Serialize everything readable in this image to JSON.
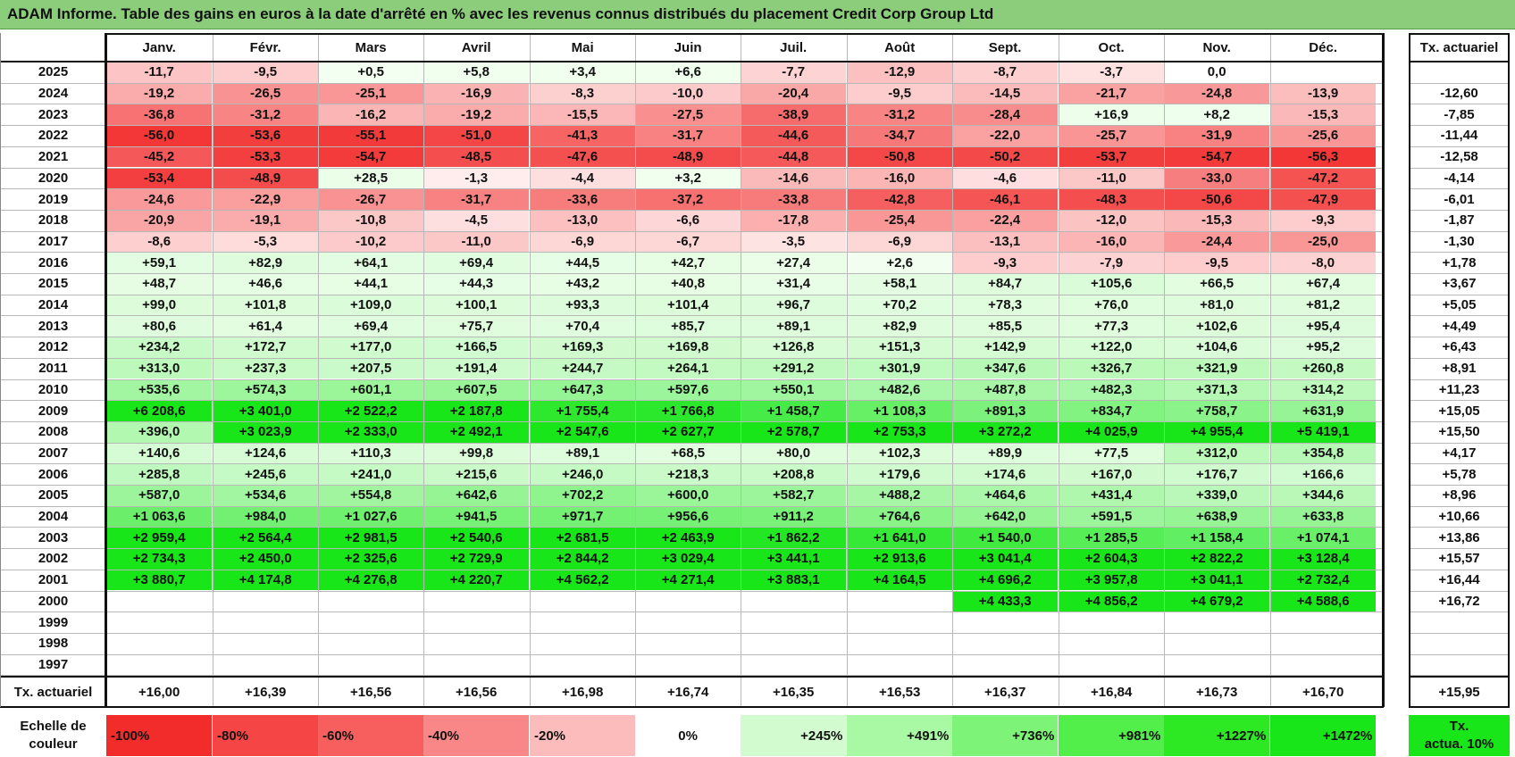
{
  "title": "ADAM Informe. Table des gains en euros à la date d'arrêté en % avec les revenus connus distribués du placement Credit Corp Group Ltd",
  "colors": {
    "neg_max": "#f22b2b",
    "neutral": "#ffffff",
    "pos_max": "#19e619",
    "title_bg": "#8ccd7c"
  },
  "chart_data": {
    "type": "heatmap",
    "months": [
      "Janv.",
      "Févr.",
      "Mars",
      "Avril",
      "Mai",
      "Juin",
      "Juil.",
      "Août",
      "Sept.",
      "Oct.",
      "Nov.",
      "Déc."
    ],
    "annual_header": "Tx. actuariel",
    "rows": [
      {
        "year": "2025",
        "values": [
          "-11,7",
          "-9,5",
          "+0,5",
          "+5,8",
          "+3,4",
          "+6,6",
          "-7,7",
          "-12,9",
          "-8,7",
          "-3,7",
          "0,0",
          ""
        ],
        "rate": ""
      },
      {
        "year": "2024",
        "values": [
          "-19,2",
          "-26,5",
          "-25,1",
          "-16,9",
          "-8,3",
          "-10,0",
          "-20,4",
          "-9,5",
          "-14,5",
          "-21,7",
          "-24,8",
          "-13,9"
        ],
        "rate": "-12,60"
      },
      {
        "year": "2023",
        "values": [
          "-36,8",
          "-31,2",
          "-16,2",
          "-19,2",
          "-15,5",
          "-27,5",
          "-38,9",
          "-31,2",
          "-28,4",
          "+16,9",
          "+8,2",
          "-15,3"
        ],
        "rate": "-7,85"
      },
      {
        "year": "2022",
        "values": [
          "-56,0",
          "-53,6",
          "-55,1",
          "-51,0",
          "-41,3",
          "-31,7",
          "-44,6",
          "-34,7",
          "-22,0",
          "-25,7",
          "-31,9",
          "-25,6"
        ],
        "rate": "-11,44"
      },
      {
        "year": "2021",
        "values": [
          "-45,2",
          "-53,3",
          "-54,7",
          "-48,5",
          "-47,6",
          "-48,9",
          "-44,8",
          "-50,8",
          "-50,2",
          "-53,7",
          "-54,7",
          "-56,3"
        ],
        "rate": "-12,58"
      },
      {
        "year": "2020",
        "values": [
          "-53,4",
          "-48,9",
          "+28,5",
          "-1,3",
          "-4,4",
          "+3,2",
          "-14,6",
          "-16,0",
          "-4,6",
          "-11,0",
          "-33,0",
          "-47,2"
        ],
        "rate": "-4,14"
      },
      {
        "year": "2019",
        "values": [
          "-24,6",
          "-22,9",
          "-26,7",
          "-31,7",
          "-33,6",
          "-37,2",
          "-33,8",
          "-42,8",
          "-46,1",
          "-48,3",
          "-50,6",
          "-47,9"
        ],
        "rate": "-6,01"
      },
      {
        "year": "2018",
        "values": [
          "-20,9",
          "-19,1",
          "-10,8",
          "-4,5",
          "-13,0",
          "-6,6",
          "-17,8",
          "-25,4",
          "-22,4",
          "-12,0",
          "-15,3",
          "-9,3"
        ],
        "rate": "-1,87"
      },
      {
        "year": "2017",
        "values": [
          "-8,6",
          "-5,3",
          "-10,2",
          "-11,0",
          "-6,9",
          "-6,7",
          "-3,5",
          "-6,9",
          "-13,1",
          "-16,0",
          "-24,4",
          "-25,0"
        ],
        "rate": "-1,30"
      },
      {
        "year": "2016",
        "values": [
          "+59,1",
          "+82,9",
          "+64,1",
          "+69,4",
          "+44,5",
          "+42,7",
          "+27,4",
          "+2,6",
          "-9,3",
          "-7,9",
          "-9,5",
          "-8,0"
        ],
        "rate": "+1,78"
      },
      {
        "year": "2015",
        "values": [
          "+48,7",
          "+46,6",
          "+44,1",
          "+44,3",
          "+43,2",
          "+40,8",
          "+31,4",
          "+58,1",
          "+84,7",
          "+105,6",
          "+66,5",
          "+67,4"
        ],
        "rate": "+3,67"
      },
      {
        "year": "2014",
        "values": [
          "+99,0",
          "+101,8",
          "+109,0",
          "+100,1",
          "+93,3",
          "+101,4",
          "+96,7",
          "+70,2",
          "+78,3",
          "+76,0",
          "+81,0",
          "+81,2"
        ],
        "rate": "+5,05"
      },
      {
        "year": "2013",
        "values": [
          "+80,6",
          "+61,4",
          "+69,4",
          "+75,7",
          "+70,4",
          "+85,7",
          "+89,1",
          "+82,9",
          "+85,5",
          "+77,3",
          "+102,6",
          "+95,4"
        ],
        "rate": "+4,49"
      },
      {
        "year": "2012",
        "values": [
          "+234,2",
          "+172,7",
          "+177,0",
          "+166,5",
          "+169,3",
          "+169,8",
          "+126,8",
          "+151,3",
          "+142,9",
          "+122,0",
          "+104,6",
          "+95,2"
        ],
        "rate": "+6,43"
      },
      {
        "year": "2011",
        "values": [
          "+313,0",
          "+237,3",
          "+207,5",
          "+191,4",
          "+244,7",
          "+264,1",
          "+291,2",
          "+301,9",
          "+347,6",
          "+326,7",
          "+321,9",
          "+260,8"
        ],
        "rate": "+8,91"
      },
      {
        "year": "2010",
        "values": [
          "+535,6",
          "+574,3",
          "+601,1",
          "+607,5",
          "+647,3",
          "+597,6",
          "+550,1",
          "+482,6",
          "+487,8",
          "+482,3",
          "+371,3",
          "+314,2"
        ],
        "rate": "+11,23"
      },
      {
        "year": "2009",
        "values": [
          "+6 208,6",
          "+3 401,0",
          "+2 522,2",
          "+2 187,8",
          "+1 755,4",
          "+1 766,8",
          "+1 458,7",
          "+1 108,3",
          "+891,3",
          "+834,7",
          "+758,7",
          "+631,9"
        ],
        "rate": "+15,05"
      },
      {
        "year": "2008",
        "values": [
          "+396,0",
          "+3 023,9",
          "+2 333,0",
          "+2 492,1",
          "+2 547,6",
          "+2 627,7",
          "+2 578,7",
          "+2 753,3",
          "+3 272,2",
          "+4 025,9",
          "+4 955,4",
          "+5 419,1"
        ],
        "rate": "+15,50"
      },
      {
        "year": "2007",
        "values": [
          "+140,6",
          "+124,6",
          "+110,3",
          "+99,8",
          "+89,1",
          "+68,5",
          "+80,0",
          "+102,3",
          "+89,9",
          "+77,5",
          "+312,0",
          "+354,8"
        ],
        "rate": "+4,17"
      },
      {
        "year": "2006",
        "values": [
          "+285,8",
          "+245,6",
          "+241,0",
          "+215,6",
          "+246,0",
          "+218,3",
          "+208,8",
          "+179,6",
          "+174,6",
          "+167,0",
          "+176,7",
          "+166,6"
        ],
        "rate": "+5,78"
      },
      {
        "year": "2005",
        "values": [
          "+587,0",
          "+534,6",
          "+554,8",
          "+642,6",
          "+702,2",
          "+600,0",
          "+582,7",
          "+488,2",
          "+464,6",
          "+431,4",
          "+339,0",
          "+344,6"
        ],
        "rate": "+8,96"
      },
      {
        "year": "2004",
        "values": [
          "+1 063,6",
          "+984,0",
          "+1 027,6",
          "+941,5",
          "+971,7",
          "+956,6",
          "+911,2",
          "+764,6",
          "+642,0",
          "+591,5",
          "+638,9",
          "+633,8"
        ],
        "rate": "+10,66"
      },
      {
        "year": "2003",
        "values": [
          "+2 959,4",
          "+2 564,4",
          "+2 981,5",
          "+2 540,6",
          "+2 681,5",
          "+2 463,9",
          "+1 862,2",
          "+1 641,0",
          "+1 540,0",
          "+1 285,5",
          "+1 158,4",
          "+1 074,1"
        ],
        "rate": "+13,86"
      },
      {
        "year": "2002",
        "values": [
          "+2 734,3",
          "+2 450,0",
          "+2 325,6",
          "+2 729,9",
          "+2 844,2",
          "+3 029,4",
          "+3 441,1",
          "+2 913,6",
          "+3 041,4",
          "+2 604,3",
          "+2 822,2",
          "+3 128,4"
        ],
        "rate": "+15,57"
      },
      {
        "year": "2001",
        "values": [
          "+3 880,7",
          "+4 174,8",
          "+4 276,8",
          "+4 220,7",
          "+4 562,2",
          "+4 271,4",
          "+3 883,1",
          "+4 164,5",
          "+4 696,2",
          "+3 957,8",
          "+3 041,1",
          "+2 732,4"
        ],
        "rate": "+16,44"
      },
      {
        "year": "2000",
        "values": [
          "",
          "",
          "",
          "",
          "",
          "",
          "",
          "",
          "+4 433,3",
          "+4 856,2",
          "+4 679,2",
          "+4 588,6"
        ],
        "rate": "+16,72"
      },
      {
        "year": "1999",
        "values": [
          "",
          "",
          "",
          "",
          "",
          "",
          "",
          "",
          "",
          "",
          "",
          ""
        ],
        "rate": ""
      },
      {
        "year": "1998",
        "values": [
          "",
          "",
          "",
          "",
          "",
          "",
          "",
          "",
          "",
          "",
          "",
          ""
        ],
        "rate": ""
      },
      {
        "year": "1997",
        "values": [
          "",
          "",
          "",
          "",
          "",
          "",
          "",
          "",
          "",
          "",
          "",
          ""
        ],
        "rate": ""
      }
    ],
    "footer": {
      "label": "Tx. actuariel",
      "values": [
        "+16,00",
        "+16,39",
        "+16,56",
        "+16,56",
        "+16,98",
        "+16,74",
        "+16,35",
        "+16,53",
        "+16,37",
        "+16,84",
        "+16,73",
        "+16,70"
      ],
      "total": "+15,95"
    },
    "scale": {
      "label_line1": "Echelle de",
      "label_line2": "couleur",
      "steps": [
        "-100%",
        "-80%",
        "-60%",
        "-40%",
        "-20%",
        "0%",
        "+245%",
        "+491%",
        "+736%",
        "+981%",
        "+1227%",
        "+1472%"
      ],
      "rate_line1": "Tx.",
      "rate_line2": "actua. 10%"
    }
  }
}
